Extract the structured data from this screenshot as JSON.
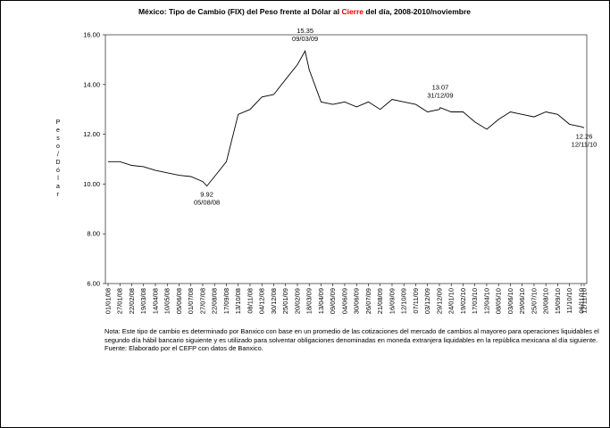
{
  "chart_data": {
    "type": "line",
    "title": [
      "México: Tipo de Cambio (FIX) del Peso frente al Dólar al ",
      "Cierre",
      " del día, 2008-2010/noviembre"
    ],
    "title_colors": [
      "#000000",
      "#e00000",
      "#000000"
    ],
    "ylabel": "Peso/Dólar",
    "ylim": [
      6,
      16
    ],
    "yticks": [
      {
        "value": 6,
        "label": "6.00"
      },
      {
        "value": 8,
        "label": "8.00"
      },
      {
        "value": 10,
        "label": "10.00"
      },
      {
        "value": 12,
        "label": "12.00"
      },
      {
        "value": 14,
        "label": "14.00"
      },
      {
        "value": 16,
        "label": "16.00"
      }
    ],
    "xticks": [
      "01/01/08",
      "27/01/08",
      "22/02/08",
      "19/03/08",
      "14/04/08",
      "10/05/08",
      "05/06/08",
      "01/07/08",
      "27/07/08",
      "22/08/08",
      "17/09/08",
      "13/10/08",
      "08/11/08",
      "04/12/08",
      "30/12/08",
      "25/01/09",
      "20/02/09",
      "18/03/09",
      "13/04/09",
      "09/05/09",
      "04/06/09",
      "30/06/09",
      "26/07/09",
      "21/08/09",
      "16/09/09",
      "12/10/09",
      "07/11/09",
      "03/12/09",
      "29/12/09",
      "24/01/10",
      "19/02/10",
      "17/03/10",
      "12/04/10",
      "08/05/10",
      "03/06/10",
      "29/06/10",
      "25/07/10",
      "20/08/10",
      "15/09/10",
      "11/10/10",
      "06/11/10",
      "12/11/10"
    ],
    "x": [
      "01/01/08",
      "27/01/08",
      "22/02/08",
      "19/03/08",
      "14/04/08",
      "10/05/08",
      "05/06/08",
      "01/07/08",
      "27/07/08",
      "05/08/08",
      "22/08/08",
      "17/09/08",
      "13/10/08",
      "08/11/08",
      "04/12/08",
      "30/12/08",
      "25/01/09",
      "20/02/09",
      "09/03/09",
      "18/03/09",
      "13/04/09",
      "09/05/09",
      "04/06/09",
      "30/06/09",
      "26/07/09",
      "21/08/09",
      "16/09/09",
      "12/10/09",
      "07/11/09",
      "03/12/09",
      "29/12/09",
      "31/12/09",
      "24/01/10",
      "19/02/10",
      "17/03/10",
      "12/04/10",
      "08/05/10",
      "03/06/10",
      "29/06/10",
      "25/07/10",
      "20/08/10",
      "15/09/10",
      "11/10/10",
      "06/11/10",
      "12/11/10"
    ],
    "series": [
      {
        "name": "Tipo de Cambio",
        "color": "#000000",
        "values": [
          10.9,
          10.9,
          10.75,
          10.7,
          10.55,
          10.45,
          10.35,
          10.3,
          10.1,
          9.92,
          10.3,
          10.9,
          12.8,
          13.0,
          13.5,
          13.6,
          14.2,
          14.8,
          15.35,
          14.6,
          13.3,
          13.2,
          13.3,
          13.1,
          13.3,
          13.0,
          13.4,
          13.3,
          13.2,
          12.9,
          13.0,
          13.07,
          12.9,
          12.9,
          12.5,
          12.2,
          12.6,
          12.9,
          12.8,
          12.7,
          12.9,
          12.8,
          12.4,
          12.3,
          12.26
        ]
      }
    ],
    "annotations": [
      {
        "value": 9.92,
        "date": "05/08/08",
        "side": "below"
      },
      {
        "value": 15.35,
        "date": "09/03/09",
        "side": "above"
      },
      {
        "value": 13.07,
        "date": "31/12/09",
        "side": "above"
      },
      {
        "value": 12.26,
        "date": "12/11/10",
        "side": "below"
      }
    ],
    "note": "Nota: Este tipo de cambio es determinado por Banxico con base en un promedio de las cotizaciones del mercado de cambios al mayoreo para operaciones liquidables el segundo día hábil bancario siguiente y es utilizado para solventar obligaciones denominadas en moneda extranjera liquidables en la república mexicana al día siguiente.",
    "source": "Fuente: Elaborado por el CEFP con datos de Banxico."
  }
}
